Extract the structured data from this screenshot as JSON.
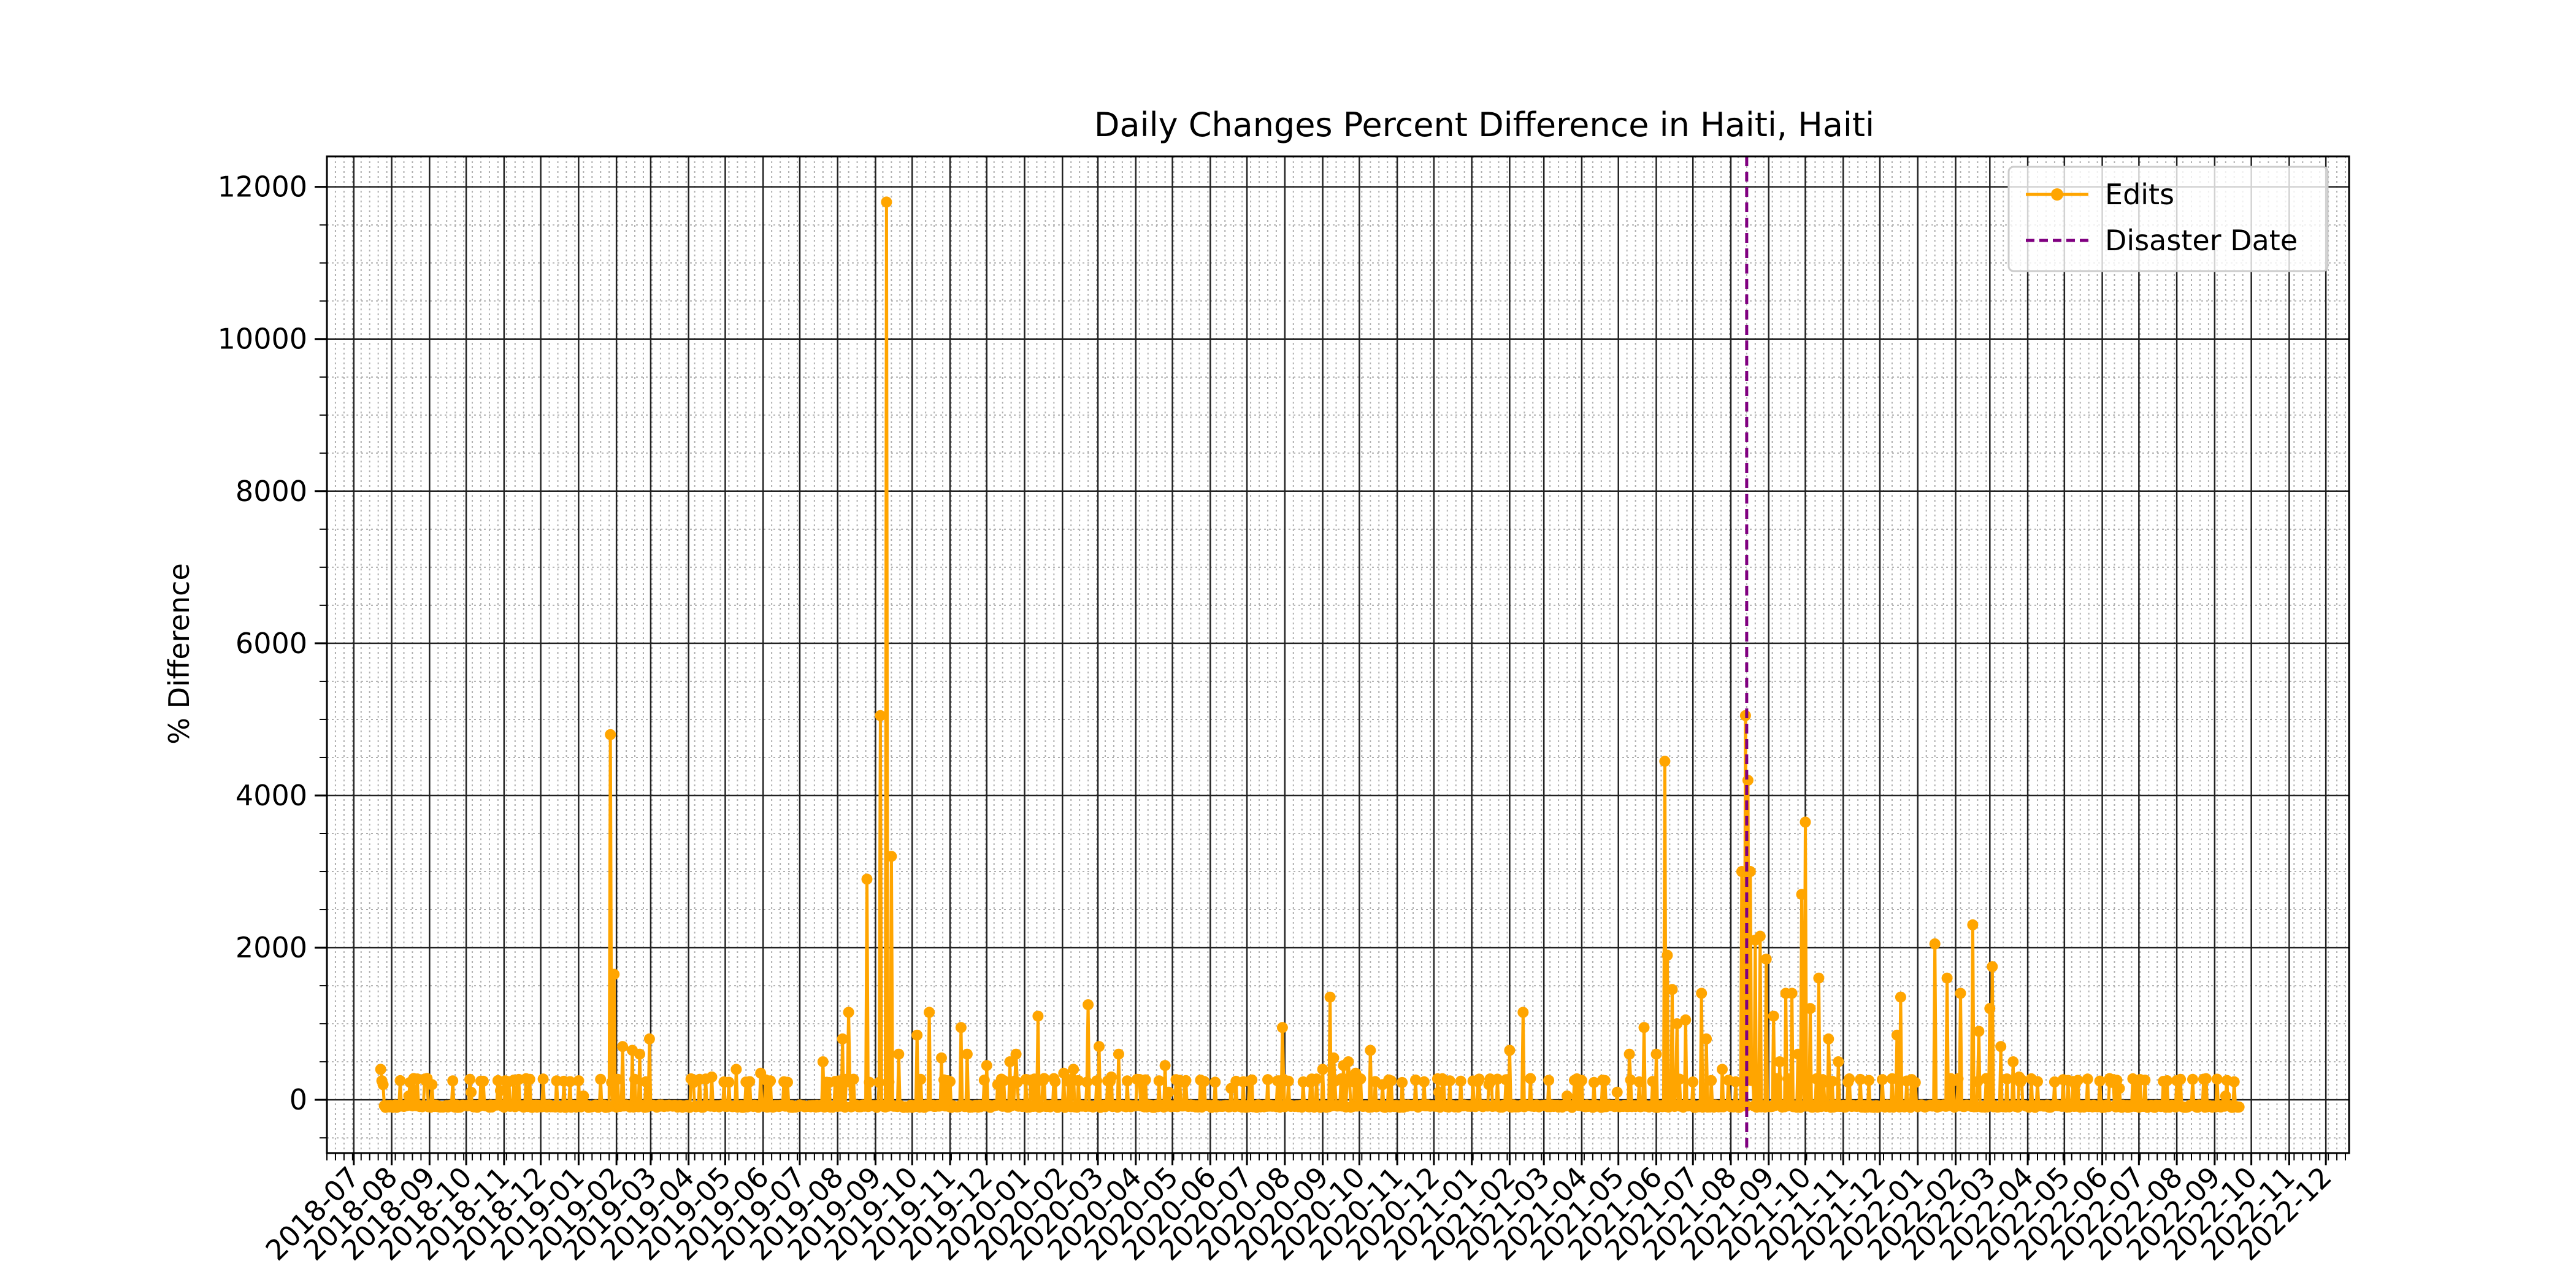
{
  "chart_data": {
    "type": "line",
    "title": "Daily Changes Percent Difference in Haiti, Haiti",
    "xlabel": "",
    "ylabel": "% Difference",
    "x_range": [
      "2018-06-09",
      "2022-12-20"
    ],
    "ylim": [
      -700,
      12400
    ],
    "y_ticks": [
      0,
      2000,
      4000,
      6000,
      8000,
      10000,
      12000
    ],
    "x_ticks": [
      "2018-07",
      "2018-08",
      "2018-09",
      "2018-10",
      "2018-11",
      "2018-12",
      "2019-01",
      "2019-02",
      "2019-03",
      "2019-04",
      "2019-05",
      "2019-06",
      "2019-07",
      "2019-08",
      "2019-09",
      "2019-10",
      "2019-11",
      "2019-12",
      "2020-01",
      "2020-02",
      "2020-03",
      "2020-04",
      "2020-05",
      "2020-06",
      "2020-07",
      "2020-08",
      "2020-09",
      "2020-10",
      "2020-11",
      "2020-12",
      "2021-01",
      "2021-02",
      "2021-03",
      "2021-04",
      "2021-05",
      "2021-06",
      "2021-07",
      "2021-08",
      "2021-09",
      "2021-10",
      "2021-11",
      "2021-12",
      "2022-01",
      "2022-02",
      "2022-03",
      "2022-04",
      "2022-05",
      "2022-06",
      "2022-07",
      "2022-08",
      "2022-09",
      "2022-10",
      "2022-11",
      "2022-12"
    ],
    "grid": true,
    "legend_position": "top-right",
    "series": [
      {
        "name": "Edits",
        "color": "#FFA500",
        "marker": "circle",
        "baseline": -100,
        "x_start": "2018-07-23",
        "x_end": "2022-09-21",
        "points": [
          [
            "2018-07-23",
            400
          ],
          [
            "2018-07-25",
            200
          ],
          [
            "2018-07-27",
            -100
          ],
          [
            "2018-08-15",
            50
          ],
          [
            "2018-08-30",
            280
          ],
          [
            "2018-09-03",
            200
          ],
          [
            "2018-09-20",
            250
          ],
          [
            "2018-10-05",
            100
          ],
          [
            "2018-10-29",
            120
          ],
          [
            "2019-01-05",
            50
          ],
          [
            "2019-01-27",
            4800
          ],
          [
            "2019-01-30",
            1650
          ],
          [
            "2019-02-06",
            700
          ],
          [
            "2019-02-14",
            650
          ],
          [
            "2019-02-20",
            600
          ],
          [
            "2019-02-28",
            800
          ],
          [
            "2019-04-20",
            300
          ],
          [
            "2019-05-10",
            400
          ],
          [
            "2019-05-30",
            350
          ],
          [
            "2019-07-20",
            500
          ],
          [
            "2019-08-05",
            800
          ],
          [
            "2019-08-10",
            1150
          ],
          [
            "2019-08-25",
            2900
          ],
          [
            "2019-09-05",
            5050
          ],
          [
            "2019-09-10",
            11800
          ],
          [
            "2019-09-14",
            3200
          ],
          [
            "2019-09-20",
            600
          ],
          [
            "2019-10-05",
            850
          ],
          [
            "2019-10-15",
            1150
          ],
          [
            "2019-10-25",
            550
          ],
          [
            "2019-11-10",
            950
          ],
          [
            "2019-11-15",
            600
          ],
          [
            "2019-12-01",
            450
          ],
          [
            "2019-12-10",
            200
          ],
          [
            "2019-12-20",
            500
          ],
          [
            "2019-12-25",
            600
          ],
          [
            "2020-01-12",
            1100
          ],
          [
            "2020-02-02",
            350
          ],
          [
            "2020-02-10",
            400
          ],
          [
            "2020-02-22",
            1250
          ],
          [
            "2020-03-02",
            700
          ],
          [
            "2020-03-12",
            300
          ],
          [
            "2020-03-18",
            600
          ],
          [
            "2020-04-25",
            450
          ],
          [
            "2020-04-28",
            100
          ],
          [
            "2020-06-18",
            150
          ],
          [
            "2020-07-30",
            950
          ],
          [
            "2020-09-01",
            400
          ],
          [
            "2020-09-07",
            1350
          ],
          [
            "2020-09-10",
            550
          ],
          [
            "2020-09-18",
            450
          ],
          [
            "2020-09-22",
            500
          ],
          [
            "2020-09-28",
            350
          ],
          [
            "2020-10-10",
            650
          ],
          [
            "2020-10-20",
            200
          ],
          [
            "2020-12-05",
            100
          ],
          [
            "2021-01-15",
            200
          ],
          [
            "2021-02-01",
            650
          ],
          [
            "2021-02-12",
            1150
          ],
          [
            "2021-03-20",
            50
          ],
          [
            "2021-04-30",
            100
          ],
          [
            "2021-05-10",
            600
          ],
          [
            "2021-05-22",
            950
          ],
          [
            "2021-06-01",
            600
          ],
          [
            "2021-06-08",
            4450
          ],
          [
            "2021-06-10",
            1900
          ],
          [
            "2021-06-14",
            1450
          ],
          [
            "2021-06-18",
            1000
          ],
          [
            "2021-06-25",
            1050
          ],
          [
            "2021-07-08",
            1400
          ],
          [
            "2021-07-12",
            800
          ],
          [
            "2021-07-25",
            400
          ],
          [
            "2021-08-10",
            3000
          ],
          [
            "2021-08-13",
            5050
          ],
          [
            "2021-08-15",
            4200
          ],
          [
            "2021-08-17",
            3000
          ],
          [
            "2021-08-21",
            2100
          ],
          [
            "2021-08-25",
            2150
          ],
          [
            "2021-08-30",
            1850
          ],
          [
            "2021-09-05",
            1100
          ],
          [
            "2021-09-10",
            500
          ],
          [
            "2021-09-15",
            1400
          ],
          [
            "2021-09-20",
            1400
          ],
          [
            "2021-09-25",
            600
          ],
          [
            "2021-09-28",
            2700
          ],
          [
            "2021-10-01",
            3650
          ],
          [
            "2021-10-05",
            1200
          ],
          [
            "2021-10-12",
            1600
          ],
          [
            "2021-10-20",
            800
          ],
          [
            "2021-10-28",
            500
          ],
          [
            "2021-12-15",
            850
          ],
          [
            "2021-12-18",
            1350
          ],
          [
            "2022-01-15",
            2050
          ],
          [
            "2022-01-25",
            1600
          ],
          [
            "2022-02-05",
            1400
          ],
          [
            "2022-02-15",
            2300
          ],
          [
            "2022-02-20",
            900
          ],
          [
            "2022-03-01",
            1200
          ],
          [
            "2022-03-03",
            1750
          ],
          [
            "2022-03-10",
            700
          ],
          [
            "2022-03-20",
            500
          ],
          [
            "2022-03-25",
            300
          ],
          [
            "2022-05-10",
            200
          ],
          [
            "2022-06-15",
            150
          ],
          [
            "2022-09-10",
            50
          ]
        ]
      },
      {
        "name": "Disaster Date",
        "color": "#800080",
        "style": "dashed",
        "x": "2021-08-14"
      }
    ]
  }
}
